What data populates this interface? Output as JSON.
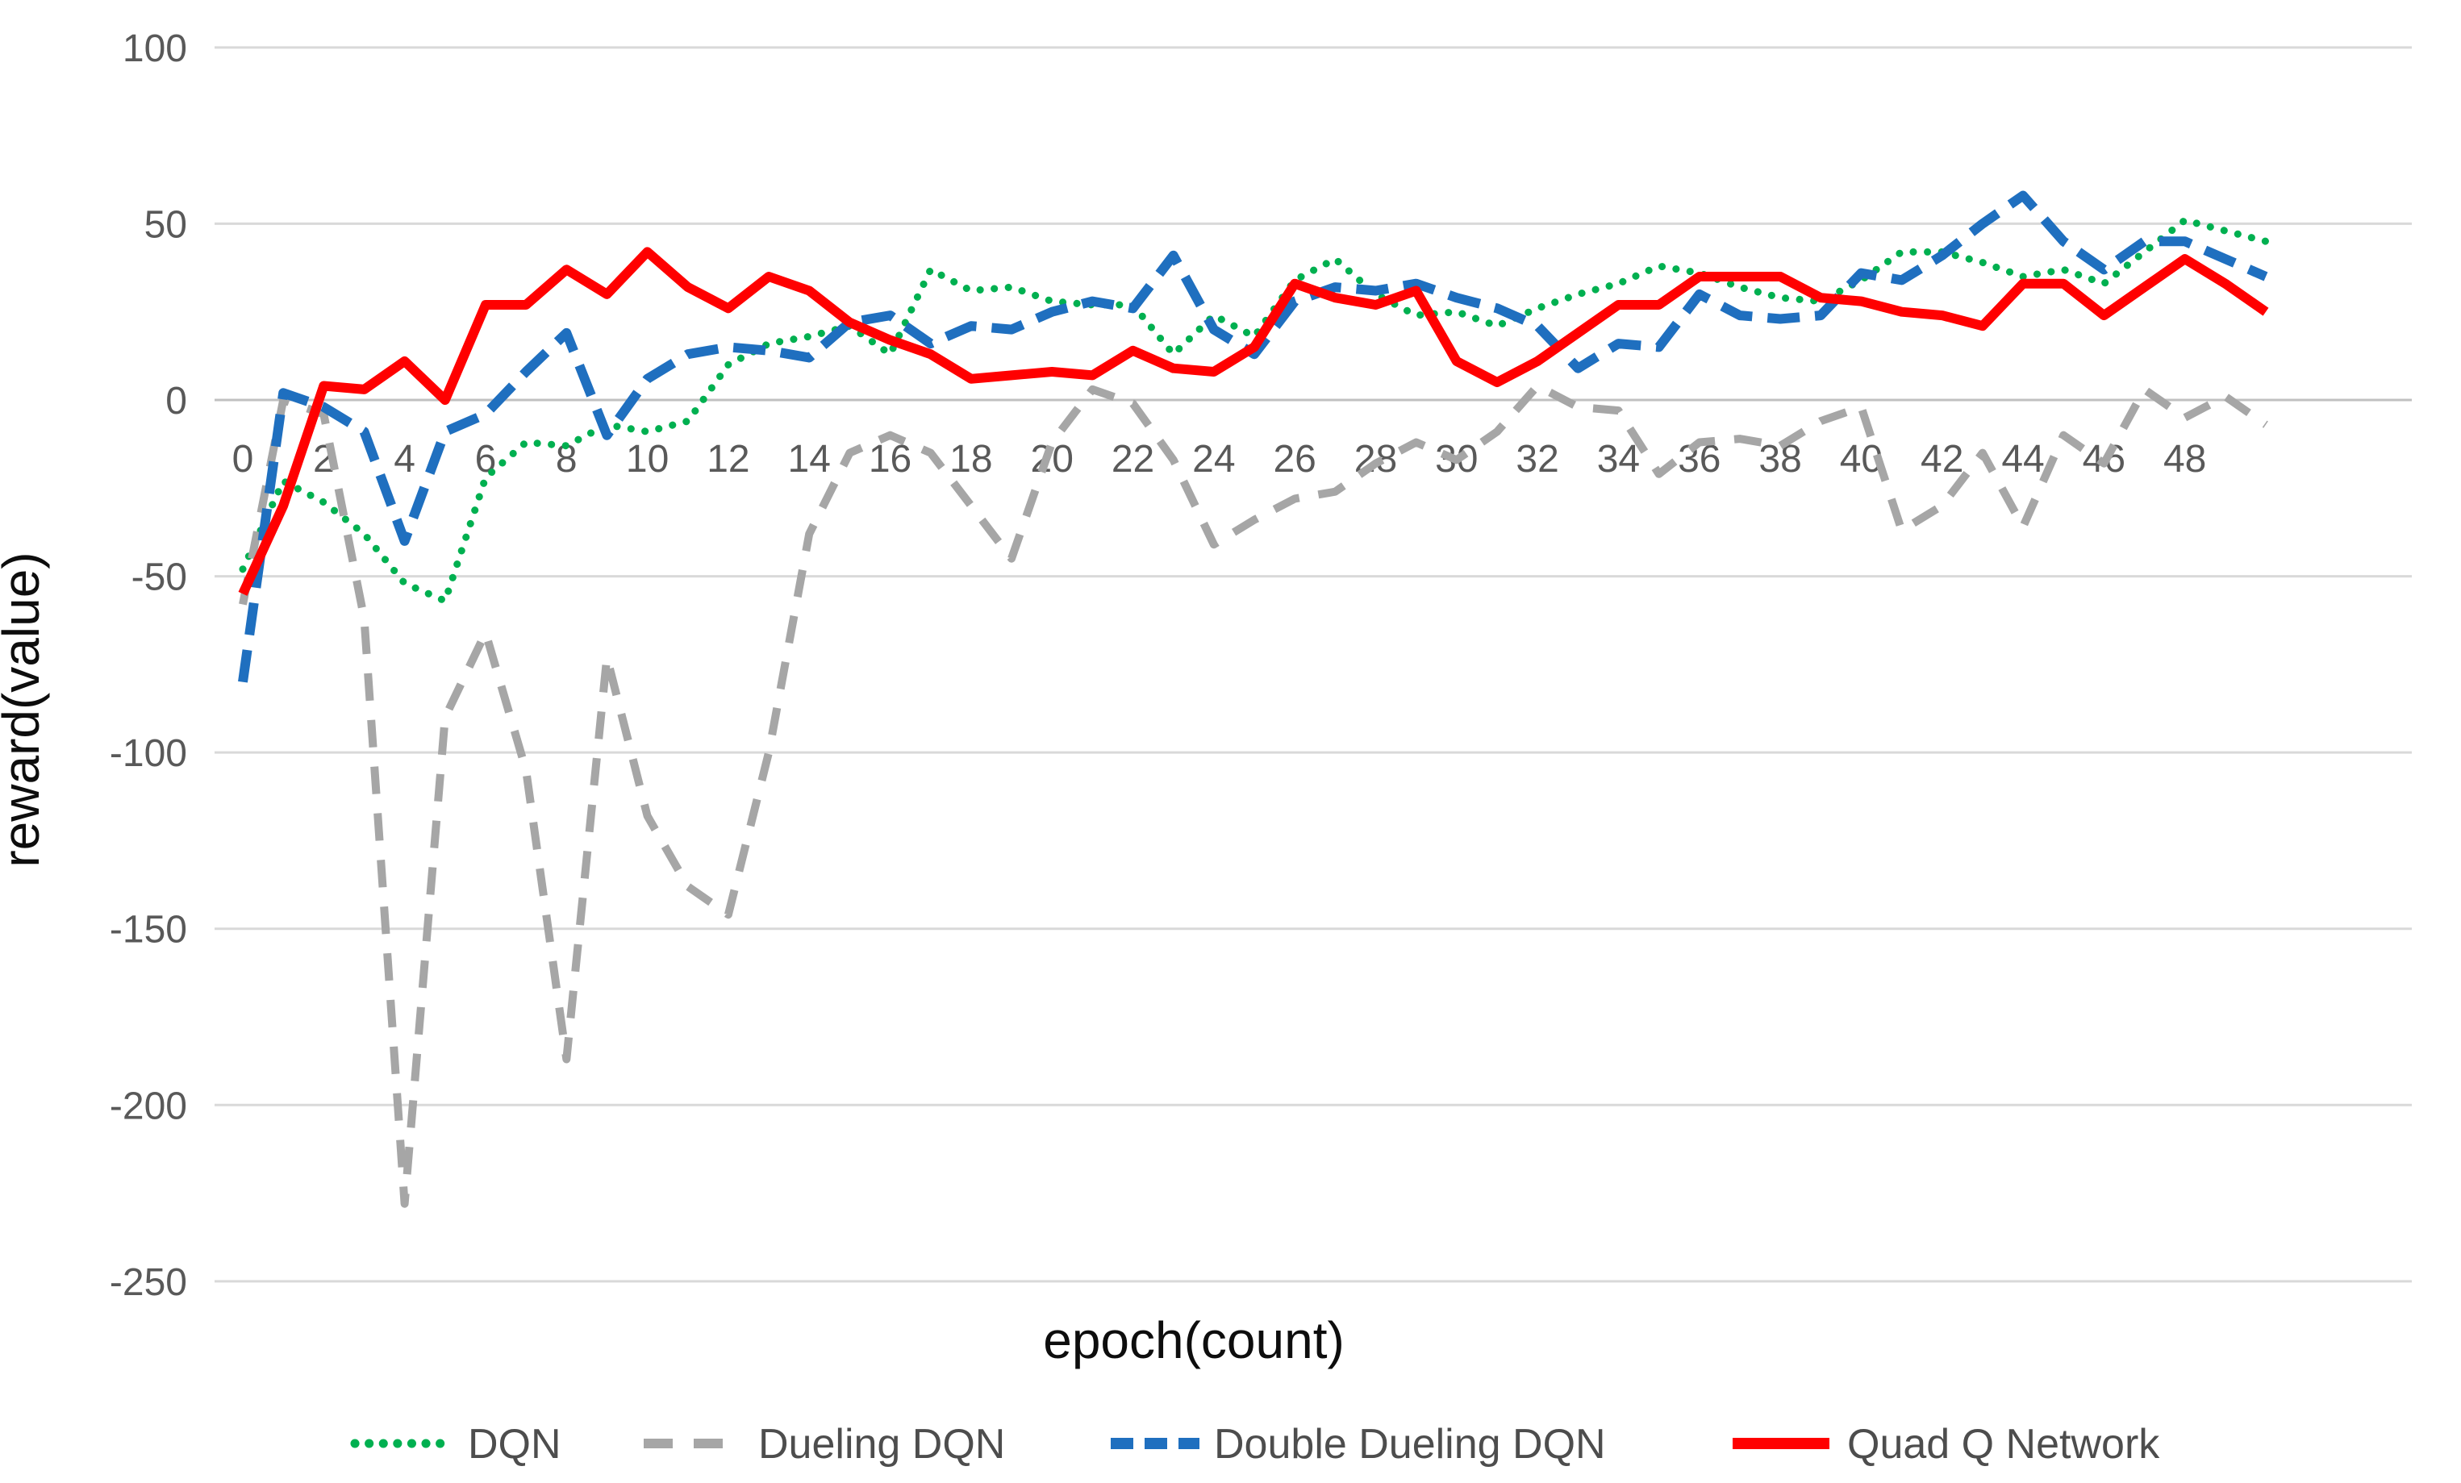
{
  "chart_data": {
    "type": "line",
    "title": "",
    "xlabel": "epoch(count)",
    "ylabel": "reward(value)",
    "xlim": [
      0,
      50
    ],
    "ylim": [
      -250,
      100
    ],
    "grid": true,
    "legend_position": "bottom",
    "y_ticks": [
      100,
      50,
      0,
      -50,
      -100,
      -150,
      -200,
      -250
    ],
    "x_tick_labels": [
      0,
      2,
      4,
      6,
      8,
      10,
      12,
      14,
      16,
      18,
      20,
      22,
      24,
      26,
      28,
      30,
      32,
      34,
      36,
      38,
      40,
      42,
      44,
      46,
      48
    ],
    "x": [
      0,
      1,
      2,
      3,
      4,
      5,
      6,
      7,
      8,
      9,
      10,
      11,
      12,
      13,
      14,
      15,
      16,
      17,
      18,
      19,
      20,
      21,
      22,
      23,
      24,
      25,
      26,
      27,
      28,
      29,
      30,
      31,
      32,
      33,
      34,
      35,
      36,
      37,
      38,
      39,
      40,
      41,
      42,
      43,
      44,
      45,
      46,
      47,
      48,
      49,
      50
    ],
    "series": [
      {
        "name": "DQN",
        "color": "#00B050",
        "style": "dotted",
        "values": [
          -48,
          -23,
          -29,
          -38,
          -52,
          -57,
          -22,
          -12,
          -13,
          -7,
          -9,
          -6,
          10,
          16,
          18,
          21,
          13,
          37,
          31,
          32,
          28,
          27,
          27,
          13,
          24,
          18,
          34,
          40,
          30,
          24,
          25,
          21,
          26,
          30,
          33,
          38,
          36,
          32,
          29,
          28,
          34,
          42,
          42,
          39,
          35,
          37,
          33,
          42,
          51,
          48,
          45
        ]
      },
      {
        "name": "Dueling DQN",
        "color": "#A6A6A6",
        "style": "dash",
        "values": [
          -58,
          0,
          -4,
          -62,
          -228,
          -90,
          -66,
          -105,
          -187,
          -73,
          -118,
          -138,
          -146,
          -100,
          -38,
          -15,
          -10,
          -15,
          -30,
          -45,
          -12,
          3,
          -1,
          -17,
          -41,
          -34,
          -28,
          -26,
          -18,
          -12,
          -17,
          -9,
          4,
          -2,
          -3,
          -21,
          -12,
          -11,
          -13,
          -6,
          -2,
          -37,
          -30,
          -15,
          -36,
          -10,
          -18,
          3,
          -5,
          1,
          -7
        ]
      },
      {
        "name": "Double Dueling DQN",
        "color": "#1F6FBF",
        "style": "dash-bold",
        "values": [
          -80,
          2,
          -2,
          -9,
          -40,
          -9,
          -4,
          8,
          19,
          -10,
          6,
          13,
          15,
          14,
          12,
          22,
          24,
          16,
          21,
          20,
          25,
          28,
          26,
          41,
          20,
          13,
          28,
          32,
          31,
          33,
          29,
          26,
          21,
          9,
          16,
          15,
          30,
          24,
          23,
          24,
          36,
          34,
          41,
          50,
          58,
          45,
          37,
          45,
          45,
          40,
          35
        ]
      },
      {
        "name": "Quad Q Network",
        "color": "#FF0000",
        "style": "solid",
        "values": [
          -55,
          -30,
          4,
          3,
          11,
          0,
          27,
          27,
          37,
          30,
          42,
          32,
          26,
          35,
          31,
          22,
          17,
          13,
          6,
          7,
          8,
          7,
          14,
          9,
          8,
          15,
          33,
          29,
          27,
          31,
          11,
          5,
          11,
          19,
          27,
          27,
          35,
          35,
          35,
          29,
          28,
          25,
          24,
          21,
          33,
          33,
          24,
          32,
          40,
          33,
          25
        ]
      }
    ]
  },
  "axis_style": {
    "tick_label_color": "#595959",
    "grid_color": "#D9D9D9",
    "zero_line_color": "#C0C0C0",
    "title_color": "#0D0D0D",
    "legend_text_color": "#4D4D4D"
  }
}
